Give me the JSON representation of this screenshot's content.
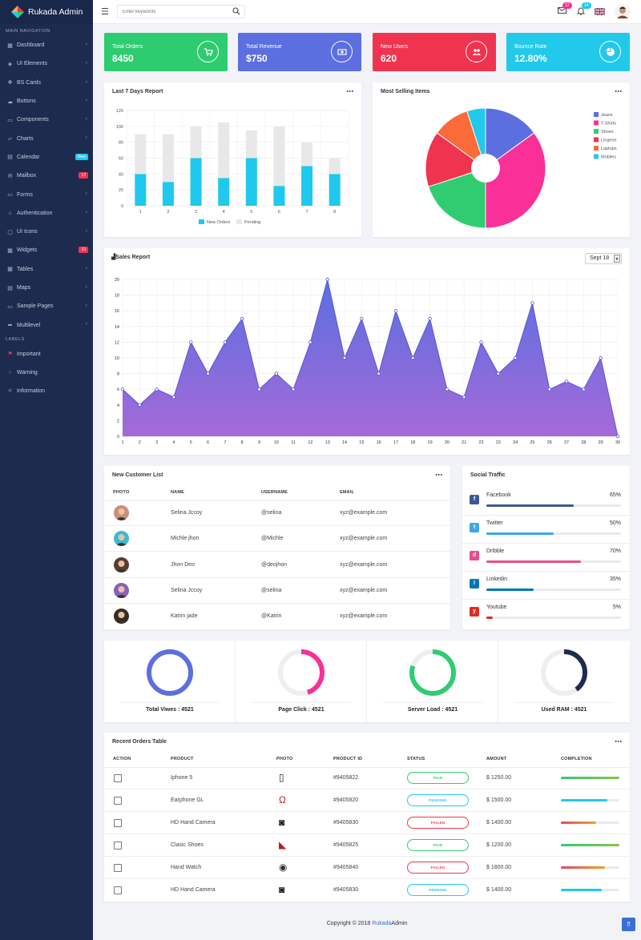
{
  "brand": {
    "name": "Rukada Admin"
  },
  "sidebar": {
    "section_main": "MAIN NAVIGATION",
    "section_labels": "LABELS",
    "items": [
      {
        "label": "Dashboard",
        "icon": "dashboard-icon"
      },
      {
        "label": "UI Elements",
        "icon": "layers-icon"
      },
      {
        "label": "BS Cards",
        "icon": "cards-icon"
      },
      {
        "label": "Buttons",
        "icon": "buttons-icon"
      },
      {
        "label": "Components",
        "icon": "components-icon"
      },
      {
        "label": "Charts",
        "icon": "charts-icon"
      },
      {
        "label": "Calendar",
        "icon": "calendar-icon",
        "badge": "New"
      },
      {
        "label": "Mailbox",
        "icon": "mailbox-icon",
        "badge": "12"
      },
      {
        "label": "Forms",
        "icon": "forms-icon"
      },
      {
        "label": "Authentication",
        "icon": "lock-icon"
      },
      {
        "label": "UI Icons",
        "icon": "icons-icon"
      },
      {
        "label": "Widgets",
        "icon": "widgets-icon",
        "badge": "10"
      },
      {
        "label": "Tables",
        "icon": "tables-icon"
      },
      {
        "label": "Maps",
        "icon": "maps-icon"
      },
      {
        "label": "Sample Pages",
        "icon": "pages-icon"
      },
      {
        "label": "Multilevel",
        "icon": "share-icon"
      }
    ],
    "labels": [
      {
        "label": "Important",
        "icon": "flag-icon",
        "color": "#f0324f"
      },
      {
        "label": "Warning",
        "icon": "circle-icon",
        "color": "#2fcc71"
      },
      {
        "label": "Information",
        "icon": "share-icon",
        "color": "#20c0e8"
      }
    ]
  },
  "topbar": {
    "search_placeholder": "Enter keywords",
    "mail_count": "12",
    "notif_count": "14"
  },
  "stats": [
    {
      "label": "Total Orders",
      "value": "8450",
      "color": "#2ecc71",
      "icon": "cart-icon"
    },
    {
      "label": "Total Revenue",
      "value": "$750",
      "color": "#5b6fe0",
      "icon": "money-icon"
    },
    {
      "label": "New Users",
      "value": "620",
      "color": "#f0344f",
      "icon": "users-icon"
    },
    {
      "label": "Bounce Rate",
      "value": "12.80%",
      "color": "#22c9ea",
      "icon": "pie-chart-icon"
    }
  ],
  "report7": {
    "title": "Last 7 Days Report",
    "menu": "⋯"
  },
  "selling": {
    "title": "Most Selling Items",
    "menu": "⋯"
  },
  "sales": {
    "title": "Sales Report",
    "period": "Sept 18"
  },
  "chart_data": [
    {
      "type": "bar",
      "title": "Last 7 Days Report",
      "stacked": true,
      "categories": [
        "1",
        "2",
        "3",
        "4",
        "5",
        "6",
        "7",
        "8"
      ],
      "series": [
        {
          "name": "New Orders",
          "color": "#1fc8ed",
          "values": [
            40,
            30,
            60,
            35,
            60,
            25,
            50,
            40
          ]
        },
        {
          "name": "Pending",
          "color": "#e8e8e8",
          "values": [
            50,
            60,
            40,
            70,
            35,
            75,
            30,
            20
          ]
        }
      ],
      "ylim": [
        0,
        120
      ],
      "yticks": [
        0,
        20,
        40,
        60,
        80,
        100,
        120
      ]
    },
    {
      "type": "pie",
      "title": "Most Selling Items",
      "donut": true,
      "slices": [
        {
          "label": "Jeans",
          "value": 15,
          "color": "#5c6fe0"
        },
        {
          "label": "T-Shirts",
          "value": 35,
          "color": "#fa2f98"
        },
        {
          "label": "Shoes",
          "value": 20,
          "color": "#2fcc71"
        },
        {
          "label": "Lingerie",
          "value": 15,
          "color": "#f0344f"
        },
        {
          "label": "Laptops",
          "value": 10,
          "color": "#fb6b3a"
        },
        {
          "label": "Mobiles",
          "value": 5,
          "color": "#22c9ea"
        }
      ]
    },
    {
      "type": "area",
      "title": "Sales Report",
      "x": [
        1,
        2,
        3,
        4,
        5,
        6,
        7,
        8,
        9,
        10,
        11,
        12,
        13,
        14,
        15,
        16,
        17,
        18,
        19,
        20,
        21,
        22,
        23,
        24,
        25,
        26,
        27,
        28,
        29,
        30
      ],
      "values": [
        6,
        4,
        6,
        5,
        12,
        8,
        12,
        15,
        6,
        8,
        6,
        12,
        20,
        10,
        15,
        8,
        16,
        10,
        15,
        6,
        5,
        12,
        8,
        10,
        17,
        6,
        7,
        6,
        10,
        0
      ],
      "ylim": [
        0,
        20
      ],
      "yticks": [
        0,
        2,
        4,
        6,
        8,
        10,
        12,
        14,
        16,
        18,
        20
      ]
    }
  ],
  "customers": {
    "title": "New Customer List",
    "headers": [
      "PHOTO",
      "NAME",
      "USERNAME",
      "EMAIL"
    ],
    "rows": [
      {
        "name": "Selina Jccoy",
        "username": "@selina",
        "email": "xyz@example.com",
        "avatar": "#c98f7a"
      },
      {
        "name": "Michle jhon",
        "username": "@Michle",
        "email": "xyz@example.com",
        "avatar": "#3bb9d6"
      },
      {
        "name": "Jhon Deo",
        "username": "@deojhon",
        "email": "xyz@example.com",
        "avatar": "#5a3b2e"
      },
      {
        "name": "Selina Jccoy",
        "username": "@selina",
        "email": "xyz@example.com",
        "avatar": "#8a5fb8"
      },
      {
        "name": "Katrin jade",
        "username": "@Katrin",
        "email": "xyz@example.com",
        "avatar": "#3a2a24"
      }
    ]
  },
  "social": {
    "title": "Social Traffic",
    "items": [
      {
        "name": "Facebook",
        "percent": "65%",
        "value": 65,
        "color": "#3b5998",
        "icon": "facebook-icon"
      },
      {
        "name": "Twitter",
        "percent": "50%",
        "value": 50,
        "color": "#3ba7e6",
        "icon": "twitter-icon"
      },
      {
        "name": "Dribble",
        "percent": "70%",
        "value": 70,
        "color": "#ea4c89",
        "icon": "dribbble-icon"
      },
      {
        "name": "Linkedin",
        "percent": "35%",
        "value": 35,
        "color": "#0077b5",
        "icon": "linkedin-icon"
      },
      {
        "name": "Youtube",
        "percent": "5%",
        "value": 5,
        "color": "#e02a20",
        "icon": "youtube-icon"
      }
    ]
  },
  "gauges": [
    {
      "label": "Total Viwes : 4521",
      "value": 100,
      "color": "#5b6fe0"
    },
    {
      "label": "Page Click : 4521",
      "value": 45,
      "color": "#fa2f98"
    },
    {
      "label": "Server Load : 4521",
      "value": 80,
      "color": "#2fcc71"
    },
    {
      "label": "Used RAM : 4521",
      "value": 40,
      "color": "#1d2c4e"
    }
  ],
  "orders": {
    "title": "Recent Orders Table",
    "headers": [
      "ACTION",
      "PRODUCT",
      "PHOTO",
      "PRODUCT ID",
      "STATUS",
      "AMOUNT",
      "COMPLETION"
    ],
    "rows": [
      {
        "product": "Iphone 5",
        "id": "#9405822",
        "status": "PAID",
        "amount": "$ 1250.00",
        "completion": 100,
        "icon": "phone-icon",
        "status_color": "#2fcc71",
        "bar_color": "#34c07f"
      },
      {
        "product": "Earphone GL",
        "id": "#9405820",
        "status": "PENDING",
        "amount": "$ 1500.00",
        "completion": 80,
        "icon": "headphone-icon",
        "status_color": "#22c9ea",
        "bar_color": "#22c9ea"
      },
      {
        "product": "HD Hand Camera",
        "id": "#9405830",
        "status": "FAILED",
        "amount": "$ 1400.00",
        "completion": 60,
        "icon": "camera-icon",
        "status_color": "#f0344f",
        "bar_color": "#f0344f"
      },
      {
        "product": "Clasic Shoes",
        "id": "#9405825",
        "status": "PAID",
        "amount": "$ 1200.00",
        "completion": 100,
        "icon": "shoe-icon",
        "status_color": "#2fcc71",
        "bar_color": "#34c07f"
      },
      {
        "product": "Hand Watch",
        "id": "#9405840",
        "status": "FAILED",
        "amount": "$ 1800.00",
        "completion": 75,
        "icon": "watch-icon",
        "status_color": "#f0344f",
        "bar_color": "#f0344f"
      },
      {
        "product": "HD Hand Camera",
        "id": "#9405830",
        "status": "PENDING",
        "amount": "$ 1400.00",
        "completion": 70,
        "icon": "camera-icon",
        "status_color": "#22c9ea",
        "bar_color": "#22c9ea"
      }
    ]
  },
  "footer": {
    "prefix": "Copyright © 2018 ",
    "brand": "Rukada",
    "suffix": "Admin"
  },
  "menu_dots": "⋯"
}
